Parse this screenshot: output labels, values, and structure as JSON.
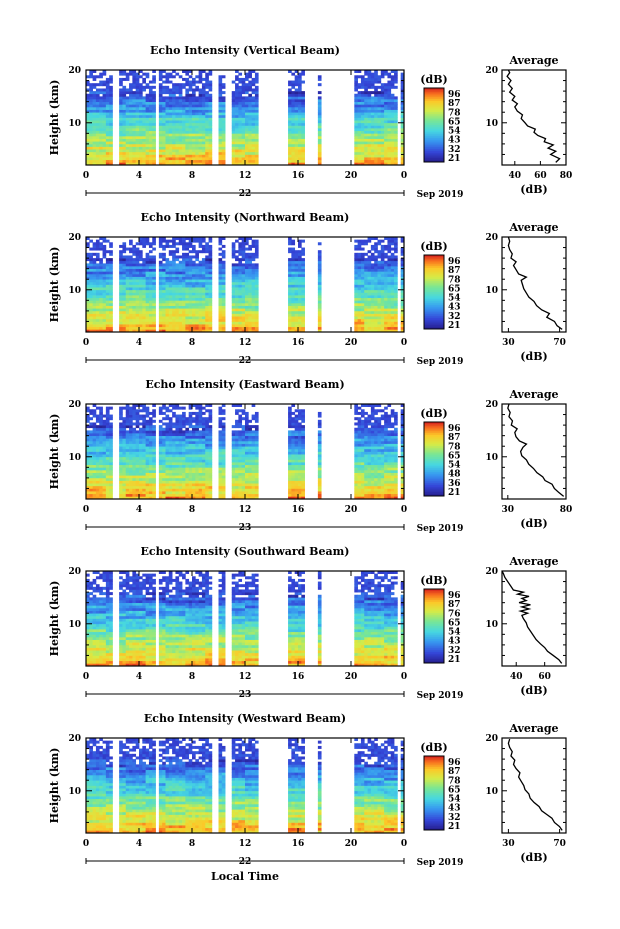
{
  "chart_data": [
    {
      "type": "heatmap",
      "title": "Echo Intensity (Vertical Beam)",
      "ylabel": "Height (km)",
      "x_ticks": [
        "0",
        "4",
        "8",
        "12",
        "16",
        "20",
        "0"
      ],
      "y_ticks": [
        "20",
        "10"
      ],
      "xlim": [
        0,
        24
      ],
      "ylim": [
        2,
        20
      ],
      "date_day": "22",
      "date_month": "Sep 2019",
      "colorbar": {
        "label": "(dB)",
        "ticks": [
          "96",
          "87",
          "78",
          "65",
          "54",
          "43",
          "32",
          "21"
        ]
      },
      "valid_range_db": [
        21,
        96
      ],
      "data_gaps_hours": [
        [
          2.0,
          2.4
        ],
        [
          5.3,
          5.6
        ],
        [
          9.6,
          10.0
        ],
        [
          10.6,
          10.9
        ],
        [
          13.0,
          15.2
        ],
        [
          16.4,
          17.5
        ],
        [
          17.7,
          20.2
        ],
        [
          23.5,
          23.8
        ]
      ],
      "average_profile": {
        "title": "Average",
        "xlabel": "(dB)",
        "x_ticks": [
          "40",
          "60",
          "80"
        ],
        "y_ticks": [
          "20",
          "10"
        ],
        "xlim": [
          30,
          80
        ],
        "ylim": [
          2,
          20
        ],
        "points": [
          [
            72,
            2.5
          ],
          [
            75,
            3.2
          ],
          [
            68,
            4.0
          ],
          [
            72,
            4.6
          ],
          [
            66,
            5.2
          ],
          [
            70,
            5.8
          ],
          [
            63,
            6.4
          ],
          [
            64,
            7.0
          ],
          [
            58,
            7.6
          ],
          [
            55,
            8.2
          ],
          [
            56,
            8.8
          ],
          [
            50,
            9.4
          ],
          [
            48,
            10.0
          ],
          [
            45,
            10.8
          ],
          [
            46,
            11.5
          ],
          [
            42,
            12.2
          ],
          [
            40,
            13.0
          ],
          [
            42,
            13.6
          ],
          [
            38,
            14.3
          ],
          [
            40,
            15.0
          ],
          [
            36,
            15.8
          ],
          [
            38,
            16.5
          ],
          [
            35,
            17.3
          ],
          [
            37,
            18.0
          ],
          [
            34,
            18.8
          ],
          [
            36,
            19.5
          ],
          [
            35,
            20.0
          ]
        ]
      }
    },
    {
      "type": "heatmap",
      "title": "Echo Intensity (Northward Beam)",
      "ylabel": "Height (km)",
      "x_ticks": [
        "0",
        "4",
        "8",
        "12",
        "16",
        "20",
        "0"
      ],
      "y_ticks": [
        "20",
        "10"
      ],
      "xlim": [
        0,
        24
      ],
      "ylim": [
        2,
        20
      ],
      "date_day": "22",
      "date_month": "Sep 2019",
      "colorbar": {
        "label": "(dB)",
        "ticks": [
          "96",
          "87",
          "78",
          "65",
          "54",
          "43",
          "32",
          "21"
        ]
      },
      "valid_range_db": [
        21,
        96
      ],
      "data_gaps_hours": [
        [
          2.0,
          2.4
        ],
        [
          5.3,
          5.6
        ],
        [
          9.6,
          10.0
        ],
        [
          10.6,
          10.9
        ],
        [
          13.0,
          15.2
        ],
        [
          16.4,
          17.5
        ],
        [
          17.7,
          20.2
        ],
        [
          23.5,
          23.8
        ]
      ],
      "average_profile": {
        "title": "Average",
        "xlabel": "(dB)",
        "x_ticks": [
          "30",
          "70"
        ],
        "y_ticks": [
          "20",
          "10"
        ],
        "xlim": [
          25,
          75
        ],
        "ylim": [
          2,
          20
        ],
        "points": [
          [
            72,
            2.5
          ],
          [
            68,
            3.2
          ],
          [
            66,
            4.0
          ],
          [
            60,
            4.8
          ],
          [
            62,
            5.5
          ],
          [
            56,
            6.2
          ],
          [
            52,
            7.0
          ],
          [
            50,
            7.8
          ],
          [
            46,
            8.6
          ],
          [
            44,
            9.4
          ],
          [
            42,
            10.2
          ],
          [
            41,
            11.0
          ],
          [
            40,
            11.8
          ],
          [
            44,
            12.4
          ],
          [
            38,
            13.0
          ],
          [
            36,
            13.8
          ],
          [
            34,
            14.6
          ],
          [
            36,
            15.3
          ],
          [
            32,
            16.0
          ],
          [
            33,
            16.8
          ],
          [
            31,
            17.6
          ],
          [
            30,
            18.4
          ],
          [
            31,
            19.2
          ],
          [
            30,
            20.0
          ]
        ]
      }
    },
    {
      "type": "heatmap",
      "title": "Echo Intensity (Eastward Beam)",
      "ylabel": "Height (km)",
      "x_ticks": [
        "0",
        "4",
        "8",
        "12",
        "16",
        "20",
        "0"
      ],
      "y_ticks": [
        "20",
        "10"
      ],
      "xlim": [
        0,
        24
      ],
      "ylim": [
        2,
        20
      ],
      "date_day": "23",
      "date_month": "Sep 2019",
      "colorbar": {
        "label": "(dB)",
        "ticks": [
          "96",
          "87",
          "78",
          "65",
          "54",
          "48",
          "36",
          "21"
        ]
      },
      "valid_range_db": [
        21,
        96
      ],
      "data_gaps_hours": [
        [
          2.0,
          2.4
        ],
        [
          5.3,
          5.6
        ],
        [
          9.6,
          10.0
        ],
        [
          10.6,
          10.9
        ],
        [
          13.0,
          15.2
        ],
        [
          16.4,
          17.5
        ],
        [
          17.7,
          20.2
        ],
        [
          23.5,
          23.8
        ]
      ],
      "average_profile": {
        "title": "Average",
        "xlabel": "(dB)",
        "x_ticks": [
          "30",
          "80"
        ],
        "y_ticks": [
          "20",
          "10"
        ],
        "xlim": [
          25,
          80
        ],
        "ylim": [
          2,
          20
        ],
        "points": [
          [
            78,
            2.5
          ],
          [
            74,
            3.2
          ],
          [
            70,
            4.0
          ],
          [
            68,
            4.8
          ],
          [
            62,
            5.5
          ],
          [
            60,
            6.2
          ],
          [
            55,
            7.0
          ],
          [
            52,
            7.8
          ],
          [
            48,
            8.6
          ],
          [
            46,
            9.4
          ],
          [
            42,
            10.2
          ],
          [
            41,
            11.0
          ],
          [
            43,
            11.8
          ],
          [
            46,
            12.4
          ],
          [
            40,
            13.0
          ],
          [
            37,
            13.8
          ],
          [
            36,
            14.6
          ],
          [
            38,
            15.3
          ],
          [
            33,
            16.0
          ],
          [
            34,
            16.8
          ],
          [
            31,
            17.6
          ],
          [
            32,
            18.4
          ],
          [
            30,
            19.2
          ],
          [
            31,
            20.0
          ]
        ]
      }
    },
    {
      "type": "heatmap",
      "title": "Echo Intensity (Southward Beam)",
      "ylabel": "Height (km)",
      "x_ticks": [
        "0",
        "4",
        "8",
        "12",
        "16",
        "20",
        "0"
      ],
      "y_ticks": [
        "20",
        "10"
      ],
      "xlim": [
        0,
        24
      ],
      "ylim": [
        2,
        20
      ],
      "date_day": "23",
      "date_month": "Sep 2019",
      "colorbar": {
        "label": "(dB)",
        "ticks": [
          "96",
          "87",
          "76",
          "65",
          "54",
          "43",
          "32",
          "21"
        ]
      },
      "valid_range_db": [
        21,
        96
      ],
      "data_gaps_hours": [
        [
          2.0,
          2.4
        ],
        [
          5.3,
          5.6
        ],
        [
          9.6,
          10.0
        ],
        [
          10.6,
          10.9
        ],
        [
          13.0,
          15.2
        ],
        [
          16.4,
          17.5
        ],
        [
          17.7,
          20.2
        ],
        [
          23.5,
          23.8
        ]
      ],
      "average_profile": {
        "title": "Average",
        "xlabel": "(dB)",
        "x_ticks": [
          "40",
          "60"
        ],
        "y_ticks": [
          "20",
          "10"
        ],
        "xlim": [
          30,
          75
        ],
        "ylim": [
          2,
          20
        ],
        "points": [
          [
            72,
            2.5
          ],
          [
            70,
            3.2
          ],
          [
            66,
            4.0
          ],
          [
            62,
            4.8
          ],
          [
            60,
            5.5
          ],
          [
            57,
            6.2
          ],
          [
            54,
            7.0
          ],
          [
            52,
            7.8
          ],
          [
            50,
            8.6
          ],
          [
            48,
            9.4
          ],
          [
            47,
            10.2
          ],
          [
            45,
            11.0
          ],
          [
            44,
            11.6
          ],
          [
            48,
            12.0
          ],
          [
            43,
            12.4
          ],
          [
            49,
            12.8
          ],
          [
            44,
            13.2
          ],
          [
            50,
            13.6
          ],
          [
            42,
            14.0
          ],
          [
            47,
            14.4
          ],
          [
            44,
            14.8
          ],
          [
            49,
            15.2
          ],
          [
            41,
            15.6
          ],
          [
            45,
            16.0
          ],
          [
            38,
            16.4
          ],
          [
            36,
            17.2
          ],
          [
            34,
            18.0
          ],
          [
            32,
            18.8
          ],
          [
            31,
            19.5
          ],
          [
            30,
            20.0
          ]
        ]
      }
    },
    {
      "type": "heatmap",
      "title": "Echo Intensity (Westward Beam)",
      "ylabel": "Height (km)",
      "xlabel": "Local Time",
      "x_ticks": [
        "0",
        "4",
        "8",
        "12",
        "16",
        "20",
        "0"
      ],
      "y_ticks": [
        "20",
        "10"
      ],
      "xlim": [
        0,
        24
      ],
      "ylim": [
        2,
        20
      ],
      "date_day": "22",
      "date_month": "Sep 2019",
      "colorbar": {
        "label": "(dB)",
        "ticks": [
          "96",
          "87",
          "78",
          "65",
          "54",
          "43",
          "32",
          "21"
        ]
      },
      "valid_range_db": [
        21,
        96
      ],
      "data_gaps_hours": [
        [
          2.0,
          2.4
        ],
        [
          5.3,
          5.6
        ],
        [
          9.6,
          10.0
        ],
        [
          10.6,
          10.9
        ],
        [
          13.0,
          15.2
        ],
        [
          16.4,
          17.5
        ],
        [
          17.7,
          20.2
        ],
        [
          23.5,
          23.8
        ]
      ],
      "average_profile": {
        "title": "Average",
        "xlabel": "(dB)",
        "x_ticks": [
          "30",
          "70"
        ],
        "y_ticks": [
          "20",
          "10"
        ],
        "xlim": [
          25,
          75
        ],
        "ylim": [
          2,
          20
        ],
        "points": [
          [
            72,
            2.5
          ],
          [
            70,
            3.2
          ],
          [
            66,
            4.0
          ],
          [
            64,
            4.8
          ],
          [
            60,
            5.5
          ],
          [
            56,
            6.2
          ],
          [
            54,
            7.0
          ],
          [
            50,
            7.8
          ],
          [
            47,
            8.6
          ],
          [
            46,
            9.4
          ],
          [
            43,
            10.2
          ],
          [
            42,
            11.0
          ],
          [
            40,
            11.8
          ],
          [
            38,
            12.6
          ],
          [
            39,
            13.4
          ],
          [
            36,
            14.2
          ],
          [
            34,
            15.0
          ],
          [
            35,
            15.8
          ],
          [
            32,
            16.6
          ],
          [
            33,
            17.4
          ],
          [
            31,
            18.2
          ],
          [
            30,
            19.0
          ],
          [
            31,
            19.8
          ]
        ]
      }
    }
  ]
}
